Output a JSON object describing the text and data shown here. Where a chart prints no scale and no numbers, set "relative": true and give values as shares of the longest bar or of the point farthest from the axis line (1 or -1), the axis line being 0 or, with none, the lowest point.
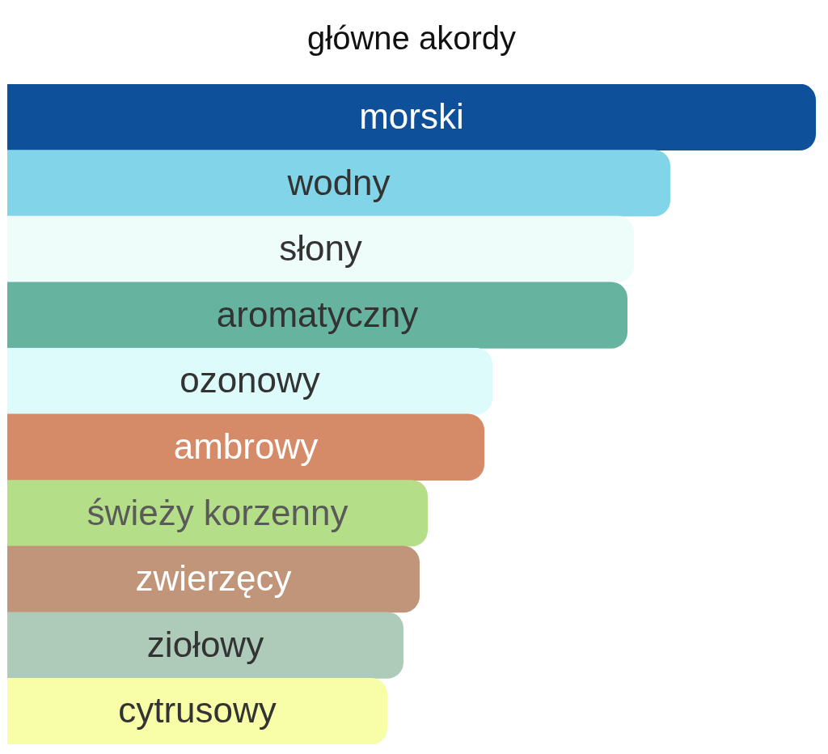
{
  "chart_data": {
    "type": "bar",
    "orientation": "horizontal",
    "relative": true,
    "title": "główne akordy",
    "categories": [
      "morski",
      "wodny",
      "słony",
      "aromatyczny",
      "ozonowy",
      "ambrowy",
      "świeży korzenny",
      "zwierzęcy",
      "ziołowy",
      "cytrusowy"
    ],
    "values": [
      1,
      0.82,
      0.775,
      0.767,
      0.6,
      0.59,
      0.52,
      0.51,
      0.49,
      0.47
    ],
    "colors": [
      "#0e509a",
      "#82d4e8",
      "#effdfa",
      "#66b4a0",
      "#dcfbfa",
      "#d58a68",
      "#b5de88",
      "#c09579",
      "#adcbb8",
      "#f8fda8"
    ]
  }
}
